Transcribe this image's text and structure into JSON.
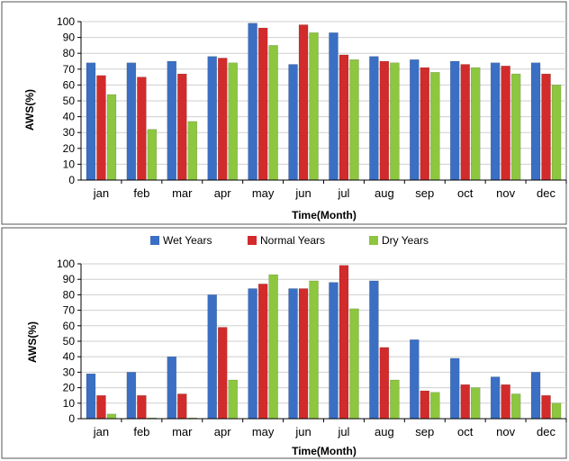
{
  "colors": {
    "wet": "#3a6fc4",
    "normal": "#d22b2b",
    "dry": "#8dc63f",
    "grid": "#cfcfcf",
    "axis": "#000000",
    "frame": "#555555"
  },
  "legend": {
    "entries": [
      "Wet Years",
      "Normal Years",
      "Dry Years"
    ],
    "placement": "top-center-between-panels"
  },
  "chart_data": [
    {
      "type": "bar",
      "title": "",
      "xlabel": "Time(Month)",
      "ylabel": "AWS(%)",
      "ylim": [
        0,
        100
      ],
      "yticks": [
        0,
        10,
        20,
        30,
        40,
        50,
        60,
        70,
        80,
        90,
        100
      ],
      "grid": "horizontal",
      "categories": [
        "jan",
        "feb",
        "mar",
        "apr",
        "may",
        "jun",
        "jul",
        "aug",
        "sep",
        "oct",
        "nov",
        "dec"
      ],
      "series": [
        {
          "name": "Wet Years",
          "values": [
            74,
            74,
            75,
            78,
            99,
            73,
            93,
            78,
            76,
            75,
            74,
            74
          ]
        },
        {
          "name": "Normal Years",
          "values": [
            66,
            65,
            67,
            77,
            96,
            98,
            79,
            75,
            71,
            73,
            72,
            67
          ]
        },
        {
          "name": "Dry Years",
          "values": [
            54,
            32,
            37,
            74,
            85,
            93,
            76,
            74,
            68,
            71,
            67,
            60
          ]
        }
      ]
    },
    {
      "type": "bar",
      "title": "",
      "xlabel": "Time(Month)",
      "ylabel": "AWS(%)",
      "ylim": [
        0,
        100
      ],
      "yticks": [
        0,
        10,
        20,
        30,
        40,
        50,
        60,
        70,
        80,
        90,
        100
      ],
      "grid": "horizontal",
      "categories": [
        "jan",
        "feb",
        "mar",
        "apr",
        "may",
        "jun",
        "jul",
        "aug",
        "sep",
        "oct",
        "nov",
        "dec"
      ],
      "series": [
        {
          "name": "Wet Years",
          "values": [
            29,
            30,
            40,
            80,
            84,
            84,
            88,
            89,
            51,
            39,
            27,
            30
          ]
        },
        {
          "name": "Normal Years",
          "values": [
            15,
            15,
            16,
            59,
            87,
            84,
            99,
            46,
            18,
            22,
            22,
            15
          ]
        },
        {
          "name": "Dry Years",
          "values": [
            3,
            0.5,
            0.5,
            25,
            93,
            89,
            71,
            25,
            17,
            20,
            16,
            10
          ]
        }
      ]
    }
  ]
}
